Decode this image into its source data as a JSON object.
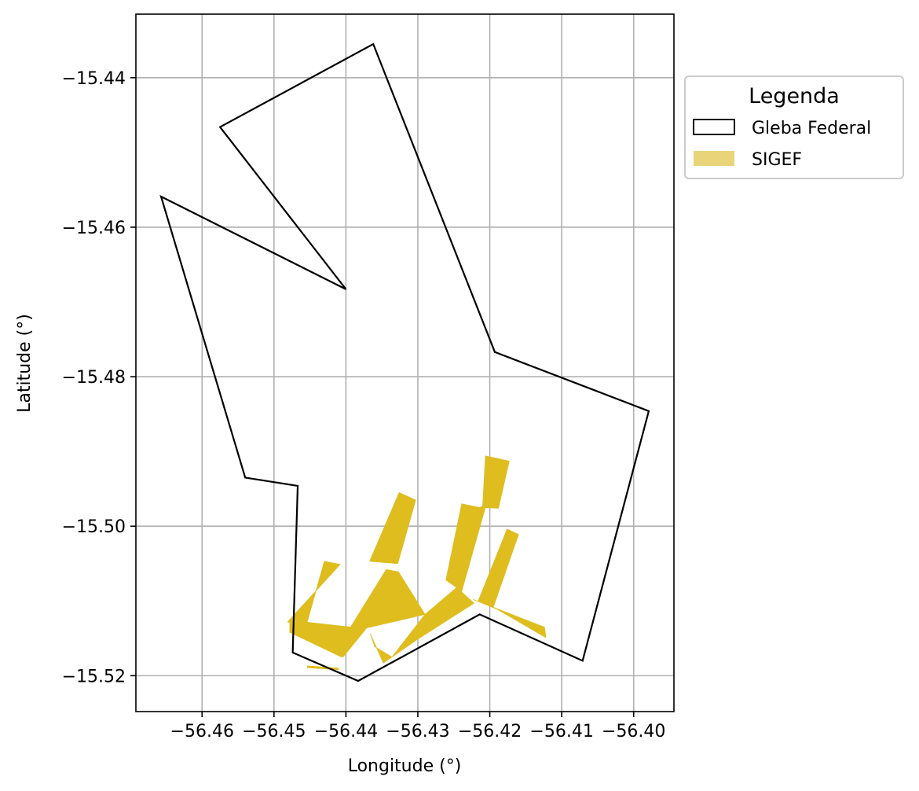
{
  "chart_data": {
    "type": "map",
    "xlabel": "Longitude (°)",
    "ylabel": "Latitude (°)",
    "xlim": [
      -56.4692,
      -56.3944
    ],
    "ylim": [
      -15.5248,
      -15.4315
    ],
    "xticks": [
      -56.46,
      -56.45,
      -56.44,
      -56.43,
      -56.42,
      -56.41,
      -56.4
    ],
    "xtick_labels": [
      "−56.46",
      "−56.45",
      "−56.44",
      "−56.43",
      "−56.42",
      "−56.41",
      "−56.40"
    ],
    "yticks": [
      -15.44,
      -15.46,
      -15.48,
      -15.5,
      -15.52
    ],
    "ytick_labels": [
      "−15.44",
      "−15.46",
      "−15.48",
      "−15.50",
      "−15.52"
    ],
    "grid": true,
    "legend": {
      "title": "Legenda",
      "placement": "outside-right-top",
      "entries": [
        {
          "name": "Gleba Federal",
          "style": "outline",
          "edge_color": "#000000"
        },
        {
          "name": "SIGEF",
          "style": "fill",
          "fill_color": "#e9d479"
        }
      ]
    },
    "series": [
      {
        "name": "Gleba Federal",
        "kind": "outline",
        "edge_color": "#000000",
        "polygons": [
          [
            [
              -56.4362,
              -15.4355
            ],
            [
              -56.4193,
              -15.4767
            ],
            [
              -56.3979,
              -15.4846
            ],
            [
              -56.4071,
              -15.518
            ],
            [
              -56.4214,
              -15.5118
            ],
            [
              -56.4383,
              -15.5207
            ],
            [
              -56.4474,
              -15.5169
            ],
            [
              -56.4467,
              -15.4946
            ],
            [
              -56.454,
              -15.4935
            ],
            [
              -56.4657,
              -15.4559
            ],
            [
              -56.44,
              -15.4683
            ],
            [
              -56.4575,
              -15.4466
            ]
          ]
        ]
      },
      {
        "name": "SIGEF",
        "kind": "fill",
        "fill_color": "#dfbd1f",
        "polygons": [
          [
            [
              -56.4367,
              -15.5047
            ],
            [
              -56.4326,
              -15.4955
            ],
            [
              -56.4303,
              -15.4965
            ],
            [
              -56.4328,
              -15.505
            ]
          ],
          [
            [
              -56.443,
              -15.5047
            ],
            [
              -56.4455,
              -15.5132
            ],
            [
              -56.4481,
              -15.5128
            ],
            [
              -56.4408,
              -15.5051
            ]
          ],
          [
            [
              -56.4444,
              -15.5135
            ],
            [
              -56.4404,
              -15.5175
            ],
            [
              -56.4372,
              -15.5137
            ]
          ],
          [
            [
              -56.4478,
              -15.5126
            ],
            [
              -56.4478,
              -15.5142
            ],
            [
              -56.4406,
              -15.5175
            ],
            [
              -56.4374,
              -15.5137
            ]
          ],
          [
            [
              -56.4366,
              -15.5144
            ],
            [
              -56.4348,
              -15.5183
            ],
            [
              -56.4336,
              -15.5175
            ],
            [
              -56.436,
              -15.5161
            ]
          ],
          [
            [
              -56.4344,
              -15.5058
            ],
            [
              -56.4327,
              -15.5061
            ],
            [
              -56.429,
              -15.5118
            ],
            [
              -56.4398,
              -15.5142
            ]
          ],
          [
            [
              -56.4336,
              -15.5175
            ],
            [
              -56.429,
              -15.5118
            ],
            [
              -56.4246,
              -15.5082
            ],
            [
              -56.43,
              -15.5151
            ]
          ],
          [
            [
              -56.43,
              -15.5151
            ],
            [
              -56.4222,
              -15.5103
            ],
            [
              -56.4246,
              -15.5082
            ]
          ],
          [
            [
              -56.4261,
              -15.5072
            ],
            [
              -56.4239,
              -15.497
            ],
            [
              -56.4214,
              -15.4975
            ],
            [
              -56.4239,
              -15.5087
            ]
          ],
          [
            [
              -56.4214,
              -15.4975
            ],
            [
              -56.4239,
              -15.5087
            ],
            [
              -56.4205,
              -15.4971
            ]
          ],
          [
            [
              -56.4206,
              -15.4906
            ],
            [
              -56.421,
              -15.4975
            ],
            [
              -56.4188,
              -15.4976
            ],
            [
              -56.4173,
              -15.4913
            ]
          ],
          [
            [
              -56.4176,
              -15.5004
            ],
            [
              -56.4216,
              -15.51
            ],
            [
              -56.4195,
              -15.5108
            ],
            [
              -56.416,
              -15.5011
            ]
          ],
          [
            [
              -56.4223,
              -15.5098
            ],
            [
              -56.419,
              -15.5111
            ],
            [
              -56.4122,
              -15.5149
            ],
            [
              -56.4124,
              -15.5135
            ]
          ],
          [
            [
              -56.4454,
              -15.5188
            ],
            [
              -56.441,
              -15.5191
            ]
          ]
        ]
      }
    ]
  }
}
